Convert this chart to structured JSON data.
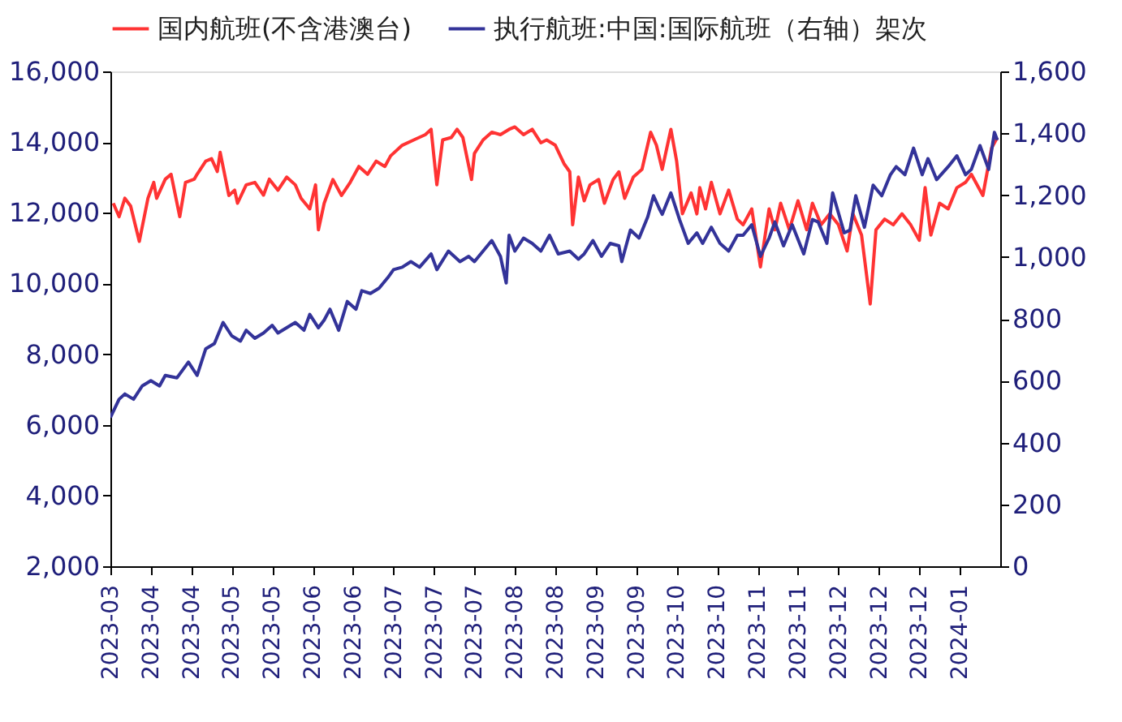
{
  "chart_data": {
    "type": "line",
    "legend": "top",
    "line_style": "solid",
    "xlim": [
      "2023-03-25",
      "2024-01-27"
    ],
    "xticks": [
      {
        "value": "2023-03-25",
        "label": "2023-03"
      },
      {
        "value": "2023-04-08",
        "label": "2023-04"
      },
      {
        "value": "2023-04-22",
        "label": "2023-04"
      },
      {
        "value": "2023-05-06",
        "label": "2023-05"
      },
      {
        "value": "2023-05-20",
        "label": "2023-05"
      },
      {
        "value": "2023-06-03",
        "label": "2023-06"
      },
      {
        "value": "2023-06-17",
        "label": "2023-06"
      },
      {
        "value": "2023-07-01",
        "label": "2023-07"
      },
      {
        "value": "2023-07-15",
        "label": "2023-07"
      },
      {
        "value": "2023-07-29",
        "label": "2023-07"
      },
      {
        "value": "2023-08-12",
        "label": "2023-08"
      },
      {
        "value": "2023-08-26",
        "label": "2023-08"
      },
      {
        "value": "2023-09-09",
        "label": "2023-09"
      },
      {
        "value": "2023-09-23",
        "label": "2023-09"
      },
      {
        "value": "2023-10-07",
        "label": "2023-10"
      },
      {
        "value": "2023-10-21",
        "label": "2023-10"
      },
      {
        "value": "2023-11-04",
        "label": "2023-11"
      },
      {
        "value": "2023-11-18",
        "label": "2023-11"
      },
      {
        "value": "2023-12-02",
        "label": "2023-12"
      },
      {
        "value": "2023-12-16",
        "label": "2023-12"
      },
      {
        "value": "2023-12-30",
        "label": "2023-12"
      },
      {
        "value": "2024-01-13",
        "label": "2024-01"
      }
    ],
    "ylim": [
      2000,
      16000
    ],
    "yticks": [
      {
        "value": 2000,
        "label": "2,000"
      },
      {
        "value": 4000,
        "label": "4,000"
      },
      {
        "value": 6000,
        "label": "6,000"
      },
      {
        "value": 8000,
        "label": "8,000"
      },
      {
        "value": 10000,
        "label": "10,000"
      },
      {
        "value": 12000,
        "label": "12,000"
      },
      {
        "value": 14000,
        "label": "14,000"
      },
      {
        "value": 16000,
        "label": "16,000"
      }
    ],
    "y2lim": [
      0,
      1600
    ],
    "y2ticks": [
      0,
      200,
      400,
      600,
      800,
      {
        "value": 1000,
        "label": "1,000"
      },
      {
        "value": 1200,
        "label": "1,200"
      },
      {
        "value": 1400,
        "label": "1,400"
      },
      {
        "value": 1600,
        "label": "1,600"
      }
    ],
    "series": [
      {
        "name": "国内航班(不含港澳台)",
        "color": "#ff3333",
        "x": [
          "2023-03-26",
          "2023-03-28",
          "2023-03-30",
          "2023-04-01",
          "2023-04-04",
          "2023-04-07",
          "2023-04-09",
          "2023-04-10",
          "2023-04-13",
          "2023-04-15",
          "2023-04-18",
          "2023-04-20",
          "2023-04-23",
          "2023-04-24",
          "2023-04-27",
          "2023-04-29",
          "2023-05-01",
          "2023-05-02",
          "2023-05-05",
          "2023-05-07",
          "2023-05-08",
          "2023-05-11",
          "2023-05-14",
          "2023-05-17",
          "2023-05-19",
          "2023-05-22",
          "2023-05-25",
          "2023-05-28",
          "2023-05-30",
          "2023-06-02",
          "2023-06-04",
          "2023-06-05",
          "2023-06-07",
          "2023-06-10",
          "2023-06-13",
          "2023-06-16",
          "2023-06-19",
          "2023-06-22",
          "2023-06-25",
          "2023-06-28",
          "2023-06-30",
          "2023-07-04",
          "2023-07-08",
          "2023-07-12",
          "2023-07-14",
          "2023-07-16",
          "2023-07-18",
          "2023-07-21",
          "2023-07-23",
          "2023-07-25",
          "2023-07-28",
          "2023-07-29",
          "2023-08-01",
          "2023-08-04",
          "2023-08-07",
          "2023-08-10",
          "2023-08-12",
          "2023-08-15",
          "2023-08-18",
          "2023-08-21",
          "2023-08-23",
          "2023-08-26",
          "2023-08-29",
          "2023-08-31",
          "2023-09-01",
          "2023-09-03",
          "2023-09-05",
          "2023-09-07",
          "2023-09-10",
          "2023-09-12",
          "2023-09-15",
          "2023-09-17",
          "2023-09-19",
          "2023-09-22",
          "2023-09-25",
          "2023-09-28",
          "2023-09-30",
          "2023-10-02",
          "2023-10-05",
          "2023-10-07",
          "2023-10-09",
          "2023-10-12",
          "2023-10-14",
          "2023-10-15",
          "2023-10-17",
          "2023-10-19",
          "2023-10-22",
          "2023-10-25",
          "2023-10-28",
          "2023-10-30",
          "2023-11-02",
          "2023-11-05",
          "2023-11-08",
          "2023-11-10",
          "2023-11-12",
          "2023-11-15",
          "2023-11-18",
          "2023-11-21",
          "2023-11-23",
          "2023-11-26",
          "2023-11-29",
          "2023-12-02",
          "2023-12-05",
          "2023-12-07",
          "2023-12-10",
          "2023-12-13",
          "2023-12-15",
          "2023-12-18",
          "2023-12-21",
          "2023-12-24",
          "2023-12-27",
          "2023-12-30",
          "2024-01-01",
          "2024-01-03",
          "2024-01-06",
          "2024-01-09",
          "2024-01-12",
          "2024-01-15",
          "2024-01-17",
          "2024-01-21",
          "2024-01-24",
          "2024-01-26"
        ],
        "values": [
          12270,
          11890,
          12410,
          12190,
          11190,
          12410,
          12860,
          12410,
          12950,
          13090,
          11890,
          12860,
          12950,
          13090,
          13460,
          13530,
          13170,
          13710,
          12490,
          12640,
          12270,
          12790,
          12860,
          12500,
          12950,
          12640,
          13010,
          12790,
          12410,
          12110,
          12790,
          11520,
          12270,
          12940,
          12490,
          12860,
          13310,
          13090,
          13460,
          13310,
          13610,
          13910,
          14060,
          14210,
          14360,
          12790,
          14060,
          14130,
          14360,
          14130,
          12940,
          13680,
          14060,
          14280,
          14210,
          14360,
          14430,
          14210,
          14360,
          13980,
          14060,
          13910,
          13390,
          13160,
          11660,
          13010,
          12340,
          12790,
          12940,
          12270,
          12940,
          13160,
          12410,
          13010,
          13230,
          14280,
          13910,
          13230,
          14360,
          13460,
          11970,
          12560,
          11970,
          12710,
          12110,
          12860,
          11970,
          12640,
          11820,
          11660,
          12110,
          10470,
          12110,
          11520,
          12270,
          11520,
          12340,
          11520,
          12270,
          11660,
          11970,
          11660,
          10920,
          11970,
          11370,
          9420,
          11520,
          11820,
          11660,
          11970,
          11660,
          11220,
          12710,
          11370,
          12270,
          12110,
          12710,
          12860,
          13090,
          12490,
          13830,
          14130
        ]
      },
      {
        "name": "执行航班:中国:国际航班（右轴）架次",
        "color": "#333399",
        "axis": "y2",
        "x": [
          "2023-03-25",
          "2023-03-28",
          "2023-03-30",
          "2023-04-02",
          "2023-04-05",
          "2023-04-08",
          "2023-04-11",
          "2023-04-13",
          "2023-04-17",
          "2023-04-21",
          "2023-04-24",
          "2023-04-27",
          "2023-04-30",
          "2023-05-03",
          "2023-05-06",
          "2023-05-09",
          "2023-05-11",
          "2023-05-14",
          "2023-05-17",
          "2023-05-20",
          "2023-05-22",
          "2023-05-25",
          "2023-05-28",
          "2023-05-31",
          "2023-06-02",
          "2023-06-05",
          "2023-06-07",
          "2023-06-09",
          "2023-06-12",
          "2023-06-15",
          "2023-06-18",
          "2023-06-20",
          "2023-06-23",
          "2023-06-26",
          "2023-06-29",
          "2023-07-01",
          "2023-07-04",
          "2023-07-07",
          "2023-07-10",
          "2023-07-14",
          "2023-07-16",
          "2023-07-20",
          "2023-07-24",
          "2023-07-27",
          "2023-07-29",
          "2023-08-01",
          "2023-08-04",
          "2023-08-07",
          "2023-08-09",
          "2023-08-10",
          "2023-08-12",
          "2023-08-15",
          "2023-08-18",
          "2023-08-21",
          "2023-08-24",
          "2023-08-27",
          "2023-08-31",
          "2023-09-03",
          "2023-09-05",
          "2023-09-08",
          "2023-09-11",
          "2023-09-14",
          "2023-09-17",
          "2023-09-18",
          "2023-09-21",
          "2023-09-24",
          "2023-09-27",
          "2023-09-29",
          "2023-10-01",
          "2023-10-02",
          "2023-10-05",
          "2023-10-08",
          "2023-10-11",
          "2023-10-14",
          "2023-10-16",
          "2023-10-19",
          "2023-10-22",
          "2023-10-25",
          "2023-10-28",
          "2023-10-30",
          "2023-11-02",
          "2023-11-05",
          "2023-11-08",
          "2023-11-10",
          "2023-11-13",
          "2023-11-16",
          "2023-11-20",
          "2023-11-23",
          "2023-11-25",
          "2023-11-28",
          "2023-11-30",
          "2023-12-04",
          "2023-12-06",
          "2023-12-08",
          "2023-12-11",
          "2023-12-14",
          "2023-12-17",
          "2023-12-20",
          "2023-12-22",
          "2023-12-25",
          "2023-12-28",
          "2023-12-31",
          "2024-01-02",
          "2024-01-05",
          "2024-01-09",
          "2024-01-12",
          "2024-01-15",
          "2024-01-17",
          "2024-01-20",
          "2024-01-23",
          "2024-01-25",
          "2024-01-26"
        ],
        "values": [
          481,
          540,
          557,
          540,
          583,
          600,
          583,
          617,
          609,
          660,
          617,
          703,
          720,
          788,
          745,
          728,
          763,
          737,
          754,
          779,
          754,
          771,
          788,
          763,
          814,
          771,
          796,
          831,
          763,
          856,
          831,
          891,
          882,
          899,
          933,
          959,
          967,
          985,
          967,
          1010,
          959,
          1019,
          985,
          1002,
          985,
          1019,
          1053,
          1002,
          916,
          1070,
          1019,
          1061,
          1044,
          1019,
          1070,
          1010,
          1019,
          993,
          1010,
          1053,
          1002,
          1044,
          1036,
          985,
          1087,
          1061,
          1130,
          1198,
          1156,
          1138,
          1207,
          1121,
          1044,
          1078,
          1044,
          1096,
          1044,
          1019,
          1070,
          1070,
          1104,
          1002,
          1061,
          1113,
          1036,
          1104,
          1010,
          1121,
          1113,
          1044,
          1207,
          1078,
          1087,
          1198,
          1096,
          1232,
          1198,
          1266,
          1292,
          1266,
          1352,
          1266,
          1318,
          1250,
          1292,
          1327,
          1266,
          1283,
          1360,
          1283,
          1403,
          1378
        ]
      }
    ]
  }
}
